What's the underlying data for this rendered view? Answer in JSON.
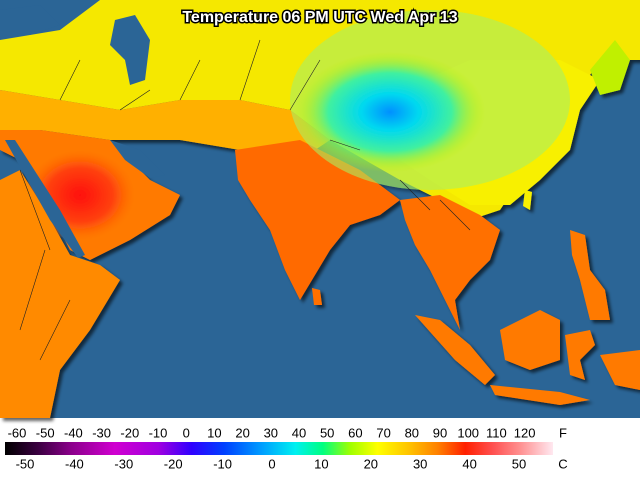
{
  "map": {
    "title": "Temperature 06 PM UTC Wed Apr 13",
    "legend": {
      "fahrenheit_unit": "F",
      "celsius_unit": "C",
      "fahrenheit_labels": [
        -60,
        -50,
        -40,
        -30,
        -20,
        -10,
        0,
        10,
        20,
        30,
        40,
        50,
        60,
        70,
        80,
        90,
        100,
        110,
        120
      ],
      "celsius_labels": [
        -50,
        -40,
        -30,
        -20,
        -10,
        0,
        10,
        20,
        30,
        40,
        50
      ]
    }
  }
}
